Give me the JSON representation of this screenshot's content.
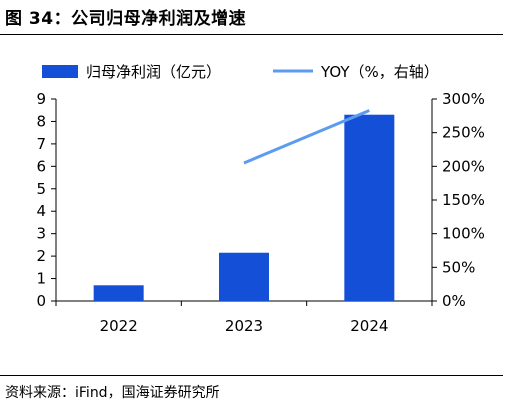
{
  "figure": {
    "title": "图 34：公司归母净利润及增速",
    "source": "资料来源：iFind，国海证券研究所"
  },
  "colors": {
    "bar": "#1450D7",
    "line": "#5B9BF0",
    "axis": "#000000",
    "text": "#000000"
  },
  "chart_data": {
    "type": "bar",
    "categories": [
      "2022",
      "2023",
      "2024"
    ],
    "series": [
      {
        "name": "归母净利润（亿元）",
        "type": "bar",
        "axis": "left",
        "values": [
          0.7,
          2.15,
          8.3
        ]
      },
      {
        "name": "YOY（%，右轴）",
        "type": "line",
        "axis": "right",
        "values": [
          null,
          205,
          283
        ]
      }
    ],
    "ylim_left": [
      0,
      9
    ],
    "yticks_left": [
      "0",
      "1",
      "2",
      "3",
      "4",
      "5",
      "6",
      "7",
      "8",
      "9"
    ],
    "ylim_right": [
      0,
      300
    ],
    "yticks_right": [
      "0%",
      "50%",
      "100%",
      "150%",
      "200%",
      "250%",
      "300%"
    ],
    "legend_position": "top",
    "grid": false
  }
}
